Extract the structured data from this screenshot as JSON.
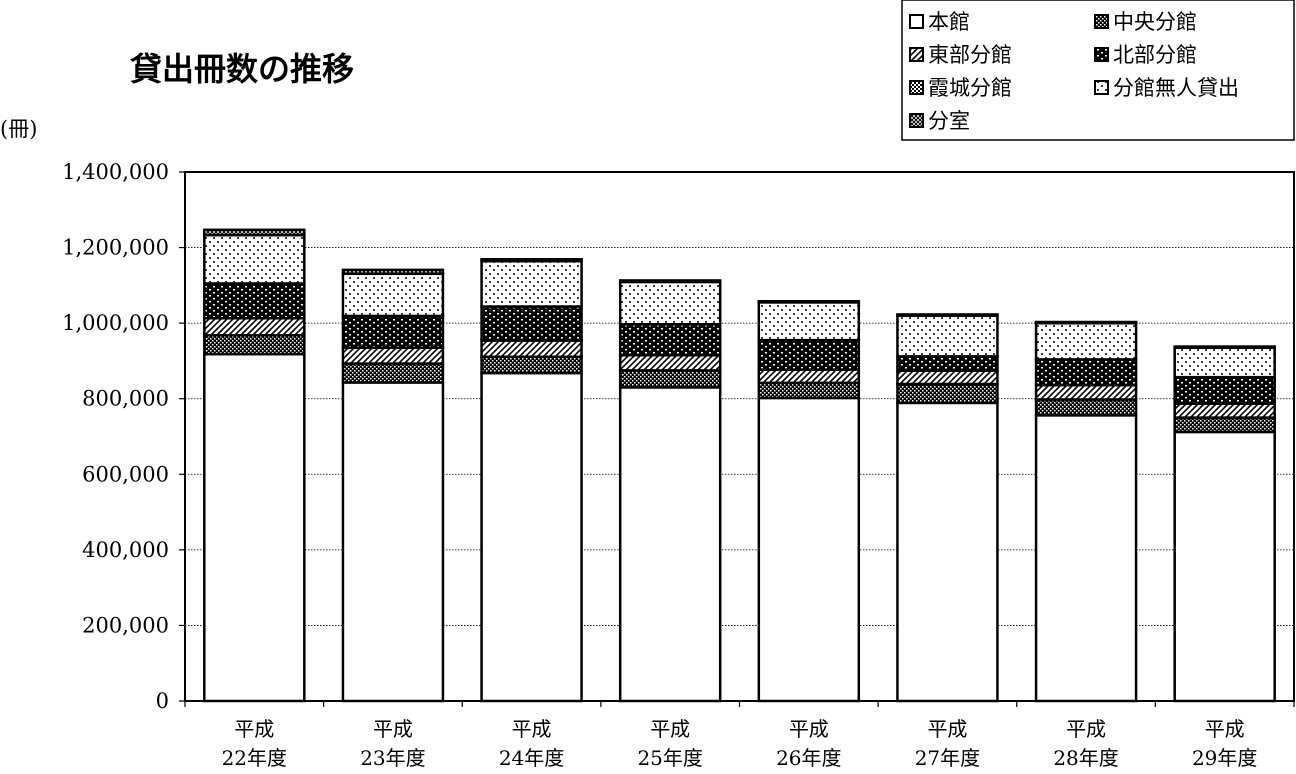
{
  "chart_data": {
    "type": "bar",
    "stacked": true,
    "title": "貸出冊数の推移",
    "ylabel": "(冊)",
    "xlabel": "",
    "ylim": [
      0,
      1400000
    ],
    "yticks": [
      0,
      200000,
      400000,
      600000,
      800000,
      1000000,
      1200000,
      1400000
    ],
    "ytick_labels": [
      "0",
      "200,000",
      "400,000",
      "600,000",
      "800,000",
      "1,000,000",
      "1,200,000",
      "1,400,000"
    ],
    "grid": "horizontal dotted",
    "legend_position": "top-right",
    "categories": [
      [
        "平成",
        "22年度"
      ],
      [
        "平成",
        "23年度"
      ],
      [
        "平成",
        "24年度"
      ],
      [
        "平成",
        "25年度"
      ],
      [
        "平成",
        "26年度"
      ],
      [
        "平成",
        "27年度"
      ],
      [
        "平成",
        "28年度"
      ],
      [
        "平成",
        "29年度"
      ]
    ],
    "series": [
      {
        "name": "本館",
        "values": [
          918000,
          843000,
          868000,
          830000,
          802000,
          789000,
          756000,
          712000
        ]
      },
      {
        "name": "中央分館",
        "values": [
          50000,
          50000,
          43000,
          45000,
          40000,
          50000,
          42000,
          38000
        ]
      },
      {
        "name": "東部分館",
        "values": [
          45000,
          42000,
          43000,
          40000,
          35000,
          35000,
          38000,
          37000
        ]
      },
      {
        "name": "北部分館",
        "values": [
          92000,
          84000,
          90000,
          82000,
          78000,
          38000,
          68000,
          70000
        ]
      },
      {
        "name": "霞城分館",
        "values": [
          0,
          0,
          0,
          0,
          0,
          0,
          0,
          0
        ]
      },
      {
        "name": "分館無人貸出",
        "values": [
          128000,
          112000,
          120000,
          112000,
          100000,
          108000,
          96000,
          78000
        ]
      },
      {
        "name": "分室",
        "values": [
          14000,
          10000,
          5000,
          4000,
          3000,
          3000,
          3000,
          3000
        ]
      }
    ]
  }
}
